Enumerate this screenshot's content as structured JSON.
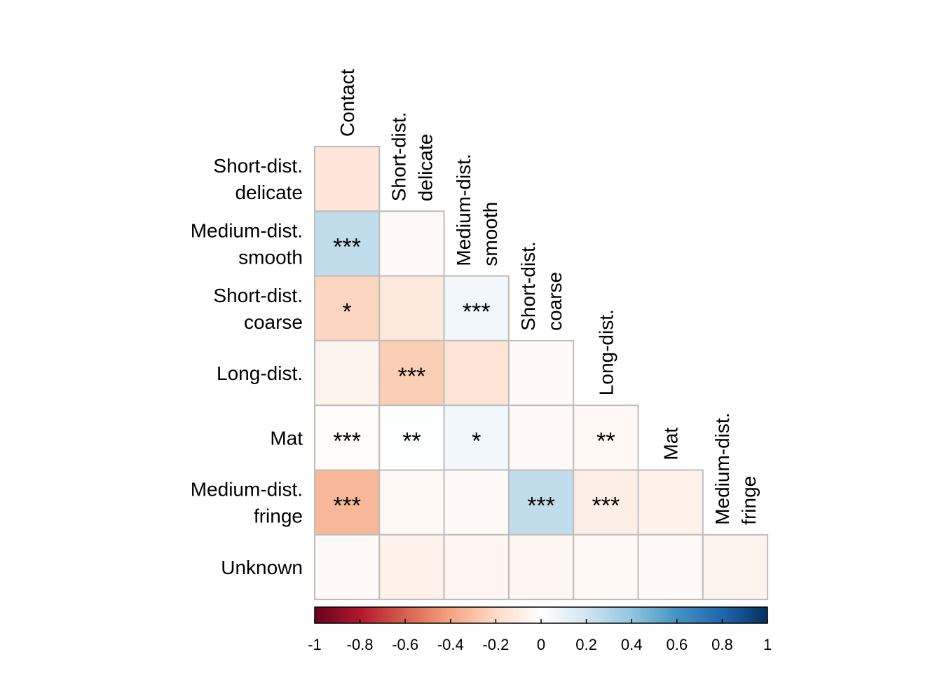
{
  "chart_data": {
    "type": "heatmap",
    "title": "",
    "layout": "lower-triangle",
    "color_scale": {
      "colormap": "RdBu",
      "min": -1,
      "max": 1,
      "stops": [
        "#67001f",
        "#b2182b",
        "#d6604d",
        "#f4a582",
        "#fddbc7",
        "#ffffff",
        "#d1e5f0",
        "#92c5de",
        "#4393c3",
        "#2166ac",
        "#053061"
      ],
      "ticks": [
        "-1",
        "-0.8",
        "-0.6",
        "-0.4",
        "-0.2",
        "0",
        "0.2",
        "0.4",
        "0.6",
        "0.8",
        "1"
      ]
    },
    "columns": [
      [
        "Contact"
      ],
      [
        "Short-dist.",
        "delicate"
      ],
      [
        "Medium-dist.",
        "smooth"
      ],
      [
        "Short-dist.",
        "coarse"
      ],
      [
        "Long-dist."
      ],
      [
        "Mat"
      ],
      [
        "Medium-dist.",
        "fringe"
      ]
    ],
    "rows": [
      {
        "label": [
          "Short-dist.",
          "delicate"
        ],
        "cells": [
          {
            "value": -0.14,
            "sig": ""
          }
        ]
      },
      {
        "label": [
          "Medium-dist.",
          "smooth"
        ],
        "cells": [
          {
            "value": 0.25,
            "sig": "***"
          },
          {
            "value": -0.03,
            "sig": ""
          }
        ]
      },
      {
        "label": [
          "Short-dist.",
          "coarse"
        ],
        "cells": [
          {
            "value": -0.22,
            "sig": "*"
          },
          {
            "value": -0.12,
            "sig": ""
          },
          {
            "value": 0.06,
            "sig": "***"
          }
        ]
      },
      {
        "label": [
          "Long-dist."
        ],
        "cells": [
          {
            "value": -0.06,
            "sig": ""
          },
          {
            "value": -0.25,
            "sig": "***"
          },
          {
            "value": -0.15,
            "sig": ""
          },
          {
            "value": -0.03,
            "sig": ""
          }
        ]
      },
      {
        "label": [
          "Mat"
        ],
        "cells": [
          {
            "value": -0.02,
            "sig": "***"
          },
          {
            "value": 0.01,
            "sig": "**"
          },
          {
            "value": 0.06,
            "sig": "*"
          },
          {
            "value": -0.03,
            "sig": ""
          },
          {
            "value": -0.04,
            "sig": "**"
          }
        ]
      },
      {
        "label": [
          "Medium-dist.",
          "fringe"
        ],
        "cells": [
          {
            "value": -0.33,
            "sig": "***"
          },
          {
            "value": -0.04,
            "sig": ""
          },
          {
            "value": -0.03,
            "sig": ""
          },
          {
            "value": 0.25,
            "sig": "***"
          },
          {
            "value": -0.09,
            "sig": "***"
          },
          {
            "value": -0.07,
            "sig": ""
          }
        ]
      },
      {
        "label": [
          "Unknown"
        ],
        "cells": [
          {
            "value": -0.03,
            "sig": ""
          },
          {
            "value": -0.07,
            "sig": ""
          },
          {
            "value": -0.05,
            "sig": ""
          },
          {
            "value": -0.05,
            "sig": ""
          },
          {
            "value": -0.04,
            "sig": ""
          },
          {
            "value": -0.03,
            "sig": ""
          },
          {
            "value": -0.06,
            "sig": ""
          }
        ]
      }
    ]
  }
}
